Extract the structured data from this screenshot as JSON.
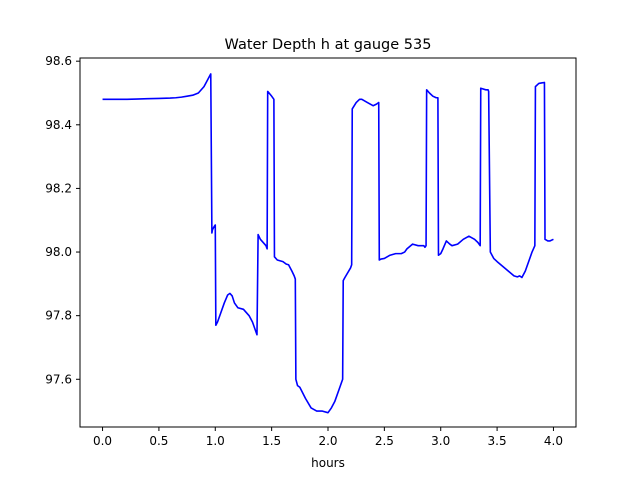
{
  "chart_data": {
    "type": "line",
    "title": "Water Depth h at gauge 535",
    "xlabel": "hours",
    "ylabel": "",
    "xlim": [
      -0.2,
      4.2
    ],
    "ylim": [
      97.45,
      98.61
    ],
    "xticks": [
      0.0,
      0.5,
      1.0,
      1.5,
      2.0,
      2.5,
      3.0,
      3.5,
      4.0
    ],
    "xtick_labels": [
      "0.0",
      "0.5",
      "1.0",
      "1.5",
      "2.0",
      "2.5",
      "3.0",
      "3.5",
      "4.0"
    ],
    "yticks": [
      97.6,
      97.8,
      98.0,
      98.2,
      98.4,
      98.6
    ],
    "ytick_labels": [
      "97.6",
      "97.8",
      "98.0",
      "98.2",
      "98.4",
      "98.6"
    ],
    "grid": false,
    "legend": "none",
    "series": [
      {
        "color": "#0000ff",
        "x": [
          0.0,
          0.1,
          0.2,
          0.3,
          0.4,
          0.5,
          0.6,
          0.65,
          0.7,
          0.75,
          0.8,
          0.85,
          0.9,
          0.93,
          0.96,
          0.97,
          0.975,
          0.99,
          1.0,
          1.005,
          1.02,
          1.05,
          1.08,
          1.11,
          1.13,
          1.15,
          1.17,
          1.2,
          1.25,
          1.3,
          1.33,
          1.37,
          1.38,
          1.4,
          1.45,
          1.46,
          1.465,
          1.5,
          1.52,
          1.525,
          1.55,
          1.6,
          1.63,
          1.65,
          1.68,
          1.7,
          1.71,
          1.715,
          1.73,
          1.75,
          1.8,
          1.85,
          1.9,
          1.95,
          2.0,
          2.03,
          2.06,
          2.1,
          2.13,
          2.135,
          2.15,
          2.2,
          2.21,
          2.215,
          2.25,
          2.28,
          2.3,
          2.35,
          2.4,
          2.43,
          2.45,
          2.455,
          2.47,
          2.5,
          2.55,
          2.6,
          2.65,
          2.68,
          2.7,
          2.75,
          2.8,
          2.85,
          2.86,
          2.87,
          2.875,
          2.9,
          2.93,
          2.96,
          2.975,
          2.98,
          3.0,
          3.02,
          3.05,
          3.08,
          3.1,
          3.15,
          3.2,
          3.25,
          3.3,
          3.33,
          3.35,
          3.355,
          3.4,
          3.42,
          3.425,
          3.44,
          3.47,
          3.5,
          3.55,
          3.6,
          3.65,
          3.68,
          3.7,
          3.72,
          3.75,
          3.78,
          3.81,
          3.835,
          3.84,
          3.87,
          3.9,
          3.92,
          3.925,
          3.95,
          3.97,
          4.0
        ],
        "y": [
          98.48,
          98.48,
          98.48,
          98.481,
          98.482,
          98.483,
          98.484,
          98.485,
          98.487,
          98.49,
          98.493,
          98.5,
          98.52,
          98.54,
          98.56,
          98.06,
          98.07,
          98.08,
          98.085,
          97.77,
          97.78,
          97.81,
          97.84,
          97.865,
          97.87,
          97.862,
          97.84,
          97.825,
          97.82,
          97.8,
          97.78,
          97.74,
          98.055,
          98.04,
          98.02,
          98.01,
          98.505,
          98.49,
          98.48,
          97.985,
          97.975,
          97.97,
          97.962,
          97.96,
          97.94,
          97.925,
          97.915,
          97.6,
          97.58,
          97.575,
          97.54,
          97.51,
          97.5,
          97.5,
          97.495,
          97.51,
          97.53,
          97.57,
          97.6,
          97.91,
          97.92,
          97.95,
          97.96,
          98.45,
          98.47,
          98.48,
          98.48,
          98.47,
          98.46,
          98.465,
          98.47,
          97.975,
          97.978,
          97.98,
          97.99,
          97.995,
          97.995,
          98.0,
          98.01,
          98.025,
          98.02,
          98.02,
          98.015,
          98.02,
          98.51,
          98.5,
          98.49,
          98.485,
          98.485,
          97.99,
          97.995,
          98.01,
          98.035,
          98.025,
          98.02,
          98.025,
          98.04,
          98.05,
          98.04,
          98.03,
          98.02,
          98.515,
          98.51,
          98.51,
          98.505,
          98.0,
          97.98,
          97.97,
          97.955,
          97.94,
          97.925,
          97.922,
          97.925,
          97.92,
          97.94,
          97.97,
          98.0,
          98.02,
          98.52,
          98.53,
          98.532,
          98.533,
          98.04,
          98.035,
          98.035,
          98.04
        ]
      }
    ]
  }
}
